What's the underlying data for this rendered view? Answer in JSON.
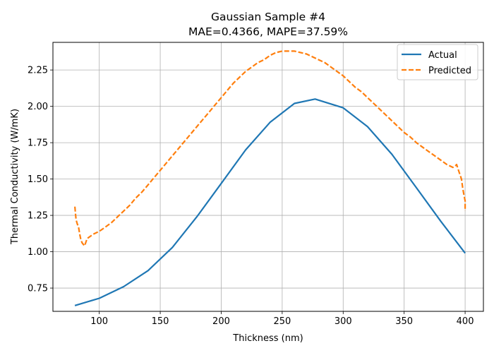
{
  "chart_data": {
    "type": "line",
    "title_line1": "Gaussian Sample #4",
    "title_line2": "MAE=0.4366, MAPE=37.59%",
    "xlabel": "Thickness (nm)",
    "ylabel": "Thermal Conductivity (W/mK)",
    "xlim": [
      62,
      415
    ],
    "ylim": [
      0.59,
      2.44
    ],
    "x_ticks": [
      100,
      150,
      200,
      250,
      300,
      350,
      400
    ],
    "y_ticks": [
      0.75,
      1.0,
      1.25,
      1.5,
      1.75,
      2.0,
      2.25
    ],
    "grid": true,
    "legend_position": "top-right",
    "series": [
      {
        "name": "Actual",
        "color": "#1f77b4",
        "style": "solid",
        "x": [
          80,
          100,
          120,
          140,
          160,
          180,
          200,
          220,
          240,
          260,
          277,
          300,
          320,
          340,
          360,
          380,
          400
        ],
        "y": [
          0.63,
          0.68,
          0.76,
          0.87,
          1.03,
          1.24,
          1.47,
          1.7,
          1.89,
          2.02,
          2.05,
          1.99,
          1.86,
          1.67,
          1.44,
          1.21,
          0.99
        ]
      },
      {
        "name": "Predicted",
        "color": "#ff7f0e",
        "style": "dashed",
        "x": [
          80,
          80.5,
          81,
          82,
          83,
          84,
          85,
          86,
          87,
          88,
          90,
          95,
          100,
          105,
          110,
          115,
          120,
          125,
          130,
          135,
          140,
          145,
          150,
          155,
          160,
          165,
          170,
          175,
          180,
          185,
          190,
          195,
          200,
          205,
          210,
          215,
          220,
          225,
          230,
          235,
          240,
          245,
          250,
          255,
          260,
          265,
          270,
          275,
          280,
          285,
          290,
          295,
          300,
          305,
          310,
          315,
          320,
          325,
          330,
          335,
          340,
          345,
          350,
          355,
          360,
          365,
          370,
          375,
          380,
          385,
          390,
          392,
          393,
          395,
          397,
          398,
          399,
          400,
          400
        ],
        "y": [
          1.31,
          1.26,
          1.22,
          1.19,
          1.17,
          1.12,
          1.08,
          1.06,
          1.05,
          1.04,
          1.09,
          1.12,
          1.14,
          1.17,
          1.2,
          1.24,
          1.28,
          1.32,
          1.37,
          1.41,
          1.46,
          1.51,
          1.56,
          1.61,
          1.66,
          1.71,
          1.76,
          1.81,
          1.86,
          1.91,
          1.96,
          2.01,
          2.06,
          2.11,
          2.16,
          2.2,
          2.24,
          2.27,
          2.3,
          2.32,
          2.35,
          2.37,
          2.38,
          2.38,
          2.38,
          2.37,
          2.36,
          2.34,
          2.32,
          2.3,
          2.27,
          2.24,
          2.21,
          2.17,
          2.13,
          2.1,
          2.06,
          2.02,
          1.98,
          1.94,
          1.9,
          1.86,
          1.82,
          1.79,
          1.75,
          1.72,
          1.69,
          1.66,
          1.63,
          1.6,
          1.58,
          1.59,
          1.6,
          1.55,
          1.5,
          1.44,
          1.39,
          1.35,
          1.28
        ]
      }
    ]
  }
}
